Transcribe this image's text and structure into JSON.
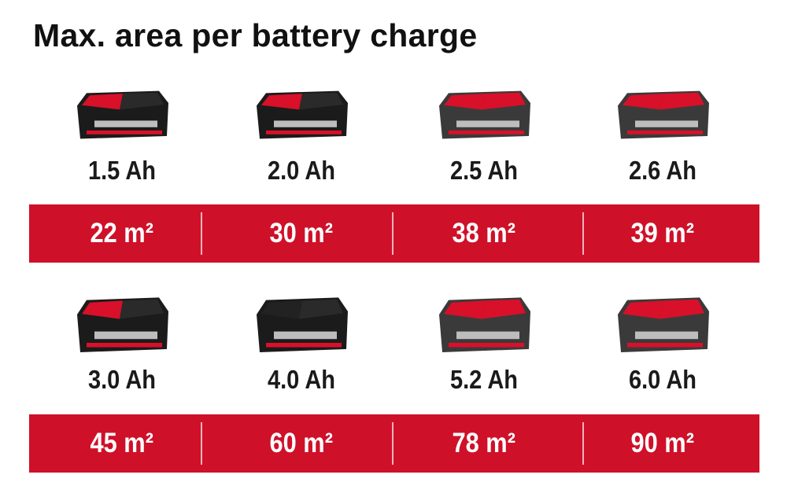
{
  "title": "Max. area per battery charge",
  "colors": {
    "band": "#cf1029",
    "battery_red": "#d8102a",
    "battery_black": "#1b1b1b"
  },
  "rows": [
    {
      "items": [
        {
          "capacity": "1.5 Ah",
          "area": "22 m²",
          "icon": "battery-pack-icon"
        },
        {
          "capacity": "2.0 Ah",
          "area": "30 m²",
          "icon": "battery-pack-icon"
        },
        {
          "capacity": "2.5 Ah",
          "area": "38 m²",
          "icon": "battery-pack-icon"
        },
        {
          "capacity": "2.6 Ah",
          "area": "39 m²",
          "icon": "battery-pack-icon"
        }
      ]
    },
    {
      "items": [
        {
          "capacity": "3.0 Ah",
          "area": "45 m²",
          "icon": "battery-pack-icon"
        },
        {
          "capacity": "4.0 Ah",
          "area": "60 m²",
          "icon": "battery-pack-icon"
        },
        {
          "capacity": "5.2 Ah",
          "area": "78 m²",
          "icon": "battery-pack-icon"
        },
        {
          "capacity": "6.0 Ah",
          "area": "90 m²",
          "icon": "battery-pack-icon"
        }
      ]
    }
  ]
}
